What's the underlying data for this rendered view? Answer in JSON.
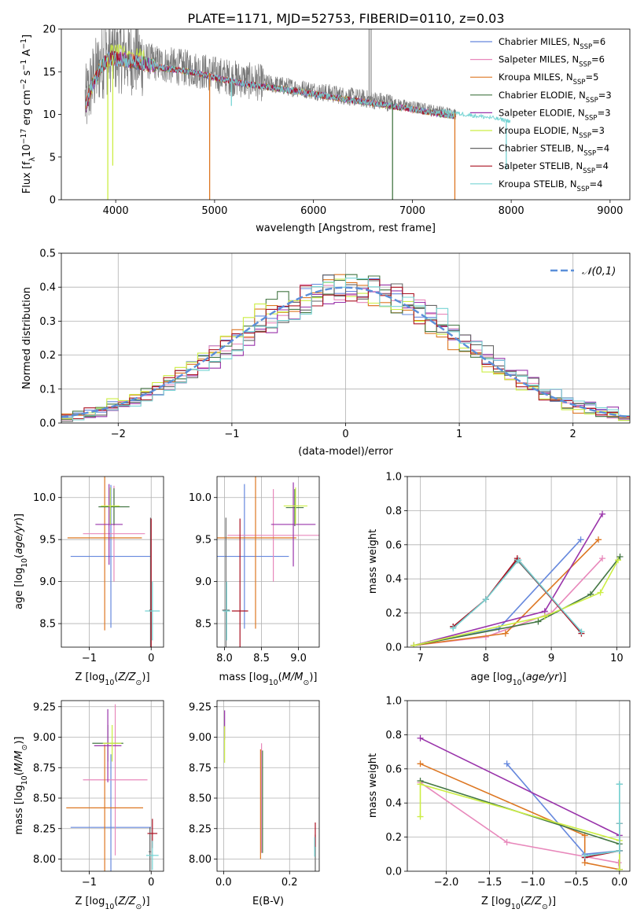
{
  "figure": {
    "title": "PLATE=1171, MJD=52753, FIBERID=0110, z=0.03"
  },
  "series_styles": [
    {
      "name": "Chabrier MILES",
      "nssp": "6",
      "color": "#6688dd"
    },
    {
      "name": "Salpeter MILES",
      "nssp": "6",
      "color": "#e888bb"
    },
    {
      "name": "Kroupa MILES",
      "nssp": "5",
      "color": "#dd7722"
    },
    {
      "name": "Chabrier ELODIE",
      "nssp": "3",
      "color": "#447744"
    },
    {
      "name": "Salpeter ELODIE",
      "nssp": "3",
      "color": "#9933aa"
    },
    {
      "name": "Kroupa ELODIE",
      "nssp": "3",
      "color": "#ccee44"
    },
    {
      "name": "Chabrier STELIB",
      "nssp": "4",
      "color": "#666666"
    },
    {
      "name": "Salpeter STELIB",
      "nssp": "4",
      "color": "#aa1122"
    },
    {
      "name": "Kroupa STELIB",
      "nssp": "4",
      "color": "#77d4d4"
    }
  ],
  "chart_data": [
    {
      "id": "spectrum",
      "type": "line",
      "xlabel": "wavelength [Angstrom, rest frame]",
      "ylabel": "Flux [f_λ10^-17 erg cm^-2 s^-1 A^-1]",
      "xlim": [
        3450,
        9200
      ],
      "ylim": [
        0,
        20
      ],
      "xticks": [
        4000,
        5000,
        6000,
        7000,
        8000,
        9000
      ],
      "yticks": [
        0,
        5,
        10,
        15,
        20
      ],
      "legend": "top-right",
      "continuum": [
        [
          3700,
          11.5
        ],
        [
          3750,
          13.5
        ],
        [
          3850,
          16.0
        ],
        [
          3950,
          17.0
        ],
        [
          4100,
          16.8
        ],
        [
          4300,
          16.3
        ],
        [
          4500,
          15.8
        ],
        [
          4800,
          15.3
        ],
        [
          5000,
          14.7
        ],
        [
          5300,
          14.0
        ],
        [
          5600,
          13.5
        ],
        [
          6000,
          12.8
        ],
        [
          6300,
          12.2
        ],
        [
          6600,
          11.7
        ],
        [
          7000,
          11.0
        ],
        [
          7400,
          10.2
        ],
        [
          7800,
          9.6
        ],
        [
          8000,
          9.2
        ]
      ],
      "absorption_spikes": [
        {
          "x": 3920,
          "y": 0.0
        },
        {
          "x": 3970,
          "y": 4.0
        },
        {
          "x": 4950,
          "y": 0.0
        },
        {
          "x": 5170,
          "y": 11.0
        },
        {
          "x": 6800,
          "y": 0.0
        },
        {
          "x": 7430,
          "y": 0.0
        },
        {
          "x": 7950,
          "y": 3.5
        }
      ],
      "emission_spikes": [
        {
          "x": 6563,
          "y": 20.0
        },
        {
          "x": 6583,
          "y": 20.0
        }
      ]
    },
    {
      "id": "residual_hist",
      "type": "bar",
      "xlabel": "(data-model)/error",
      "ylabel": "Normed distribution",
      "xlim": [
        -2.5,
        2.5
      ],
      "ylim": [
        0,
        0.5
      ],
      "xticks": [
        -2,
        -1,
        0,
        1,
        2
      ],
      "yticks": [
        0.0,
        0.1,
        0.2,
        0.3,
        0.4,
        0.5
      ],
      "bin_width": 0.1,
      "legend": "top-right",
      "gaussian_label": "𝒩(0,1)"
    },
    {
      "id": "z_vs_age",
      "type": "scatter",
      "xlabel": "Z [log10(Z/Z⊙)]",
      "ylabel": "age [log10(age/yr)]",
      "xlim": [
        -1.45,
        0.2
      ],
      "ylim": [
        8.22,
        10.25
      ],
      "xticks": [
        -1,
        0
      ],
      "yticks": [
        8.5,
        9.0,
        9.5,
        10.0
      ],
      "points": [
        {
          "x": -0.65,
          "y": 9.3,
          "xerr": 0.65,
          "yerr": 0.85
        },
        {
          "x": -0.6,
          "y": 9.57,
          "xerr": 0.5,
          "yerr": 0.57
        },
        {
          "x": -0.75,
          "y": 9.52,
          "xerr": 0.6,
          "yerr": 1.1
        },
        {
          "x": -0.6,
          "y": 9.89,
          "xerr": 0.25,
          "yerr": 0.22
        },
        {
          "x": -0.68,
          "y": 9.68,
          "xerr": 0.22,
          "yerr": 0.48
        },
        {
          "x": -0.66,
          "y": 9.9,
          "xerr": 0.15,
          "yerr": 0.22
        },
        {
          "x": -0.01,
          "y": 8.66,
          "xerr": 0.02,
          "yerr": 1.1
        },
        {
          "x": 0.0,
          "y": 8.65,
          "xerr": 0.03,
          "yerr": 1.1
        },
        {
          "x": 0.02,
          "y": 8.65,
          "xerr": 0.12,
          "yerr": 0.35
        }
      ]
    },
    {
      "id": "mass_vs_age",
      "type": "scatter",
      "xlabel": "mass [log10(M/M⊙)]",
      "ylabel": "",
      "xlim": [
        7.9,
        9.28
      ],
      "ylim": [
        8.22,
        10.25
      ],
      "xticks": [
        8.0,
        8.5,
        9.0
      ],
      "yticks": [
        8.5,
        9.0,
        9.5,
        10.0
      ],
      "points": [
        {
          "x": 8.27,
          "y": 9.3,
          "xerr": 0.6,
          "yerr": 0.86
        },
        {
          "x": 8.66,
          "y": 9.55,
          "xerr": 0.62,
          "yerr": 0.55
        },
        {
          "x": 8.42,
          "y": 9.52,
          "xerr": 0.55,
          "yerr": 1.08
        },
        {
          "x": 8.95,
          "y": 9.88,
          "xerr": 0.12,
          "yerr": 0.22
        },
        {
          "x": 8.93,
          "y": 9.68,
          "xerr": 0.3,
          "yerr": 0.5
        },
        {
          "x": 8.96,
          "y": 9.9,
          "xerr": 0.16,
          "yerr": 0.22
        },
        {
          "x": 8.02,
          "y": 8.66,
          "xerr": 0.05,
          "yerr": 1.1
        },
        {
          "x": 8.21,
          "y": 8.65,
          "xerr": 0.11,
          "yerr": 1.1
        },
        {
          "x": 8.03,
          "y": 8.65,
          "xerr": 0.05,
          "yerr": 0.35
        }
      ]
    },
    {
      "id": "age_vs_weight",
      "type": "line",
      "xlabel": "age [log10(age/yr)]",
      "ylabel": "mass weight",
      "xlim": [
        6.8,
        10.2
      ],
      "ylim": [
        0,
        1.0
      ],
      "xticks": [
        7,
        8,
        9,
        10
      ],
      "yticks": [
        0.0,
        0.2,
        0.4,
        0.6,
        0.8,
        1.0
      ],
      "series": [
        {
          "x": [
            6.9,
            8.2,
            9.45
          ],
          "y": [
            0.01,
            0.11,
            0.63
          ]
        },
        {
          "x": [
            6.9,
            8.0,
            9.0,
            9.78
          ],
          "y": [
            0.01,
            0.06,
            0.2,
            0.52
          ]
        },
        {
          "x": [
            6.9,
            8.3,
            9.72
          ],
          "y": [
            0.01,
            0.08,
            0.63
          ]
        },
        {
          "x": [
            6.9,
            8.8,
            9.6,
            10.05
          ],
          "y": [
            0.01,
            0.15,
            0.31,
            0.53
          ]
        },
        {
          "x": [
            6.9,
            8.9,
            9.78
          ],
          "y": [
            0.01,
            0.21,
            0.78
          ]
        },
        {
          "x": [
            6.9,
            8.9,
            9.75,
            10.02
          ],
          "y": [
            0.01,
            0.18,
            0.32,
            0.51
          ]
        },
        {
          "x": [
            7.5,
            8.0,
            8.48,
            9.46
          ],
          "y": [
            0.12,
            0.28,
            0.51,
            0.09
          ]
        },
        {
          "x": [
            7.5,
            8.0,
            8.48,
            9.46
          ],
          "y": [
            0.12,
            0.28,
            0.52,
            0.08
          ]
        },
        {
          "x": [
            7.5,
            8.0,
            8.5,
            9.46
          ],
          "y": [
            0.11,
            0.28,
            0.51,
            0.09
          ]
        }
      ]
    },
    {
      "id": "z_vs_mass",
      "type": "scatter",
      "xlabel": "Z [log10(Z/Z⊙)]",
      "ylabel": "mass [log10(M/M⊙)]",
      "xlim": [
        -1.45,
        0.2
      ],
      "ylim": [
        7.9,
        9.3
      ],
      "xticks": [
        -1,
        0
      ],
      "yticks": [
        8.0,
        8.25,
        8.5,
        8.75,
        9.0,
        9.25
      ],
      "points": [
        {
          "x": -0.65,
          "y": 8.26,
          "xerr": 0.65,
          "yerr": 0.6
        },
        {
          "x": -0.58,
          "y": 8.65,
          "xerr": 0.52,
          "yerr": 0.62
        },
        {
          "x": -0.75,
          "y": 8.42,
          "xerr": 0.62,
          "yerr": 0.52
        },
        {
          "x": -0.7,
          "y": 8.95,
          "xerr": 0.25,
          "yerr": 0.15
        },
        {
          "x": -0.7,
          "y": 8.93,
          "xerr": 0.22,
          "yerr": 0.3
        },
        {
          "x": -0.63,
          "y": 8.95,
          "xerr": 0.15,
          "yerr": 0.15
        },
        {
          "x": -0.02,
          "y": 8.06,
          "xerr": 0.02,
          "yerr": 0.2
        },
        {
          "x": 0.02,
          "y": 8.21,
          "xerr": 0.08,
          "yerr": 0.12
        },
        {
          "x": 0.02,
          "y": 8.03,
          "xerr": 0.1,
          "yerr": 0.12
        }
      ]
    },
    {
      "id": "ebv_vs_mass",
      "type": "scatter",
      "xlabel": "E(B-V)",
      "ylabel": "",
      "xlim": [
        -0.02,
        0.29
      ],
      "ylim": [
        7.9,
        9.3
      ],
      "xticks": [
        0.0,
        0.2
      ],
      "yticks": [
        8.0,
        8.25,
        8.5,
        8.75,
        9.0,
        9.25
      ],
      "points": [
        {
          "x": 0.003,
          "y": 9.1,
          "xerr": 0.0,
          "yerr": 0.12
        },
        {
          "x": 0.003,
          "y": 8.94,
          "xerr": 0.0,
          "yerr": 0.15
        },
        {
          "x": 0.112,
          "y": 8.45,
          "xerr": 0.0,
          "yerr": 0.45
        },
        {
          "x": 0.115,
          "y": 8.5,
          "xerr": 0.0,
          "yerr": 0.45
        },
        {
          "x": 0.118,
          "y": 8.47,
          "xerr": 0.0,
          "yerr": 0.42
        },
        {
          "x": 0.278,
          "y": 8.05,
          "xerr": 0.0,
          "yerr": 0.15
        },
        {
          "x": 0.278,
          "y": 8.2,
          "xerr": 0.0,
          "yerr": 0.1
        },
        {
          "x": 0.276,
          "y": 8.1,
          "xerr": 0.0,
          "yerr": 0.08
        }
      ]
    },
    {
      "id": "z_vs_weight",
      "type": "line",
      "xlabel": "Z [log10(Z/Z⊙)]",
      "ylabel": "mass weight",
      "xlim": [
        -2.45,
        0.12
      ],
      "ylim": [
        0,
        1.0
      ],
      "xticks": [
        -2.0,
        -1.5,
        -1.0,
        -0.5,
        0.0
      ],
      "yticks": [
        0.0,
        0.2,
        0.4,
        0.6,
        0.8,
        1.0
      ],
      "series": [
        {
          "x": [
            -1.3,
            -0.4,
            0.0,
            0.0
          ],
          "y": [
            0.63,
            0.1,
            0.12,
            0.01
          ]
        },
        {
          "x": [
            -2.3,
            -1.3,
            -0.01,
            0.0
          ],
          "y": [
            0.52,
            0.17,
            0.05,
            0.01
          ]
        },
        {
          "x": [
            -2.3,
            -0.4,
            -0.4,
            0.0
          ],
          "y": [
            0.63,
            0.21,
            0.05,
            0.01
          ]
        },
        {
          "x": [
            -2.3,
            0.0,
            0.0
          ],
          "y": [
            0.53,
            0.16,
            0.01
          ]
        },
        {
          "x": [
            -2.3,
            0.0,
            0.0
          ],
          "y": [
            0.78,
            0.21,
            0.01
          ]
        },
        {
          "x": [
            -2.3,
            -2.3,
            0.0,
            0.0
          ],
          "y": [
            0.32,
            0.51,
            0.18,
            0.01
          ]
        },
        {
          "x": [
            -0.4,
            0.0,
            0.0
          ],
          "y": [
            0.09,
            0.12,
            0.51
          ]
        },
        {
          "x": [
            -0.4,
            0.0,
            0.0
          ],
          "y": [
            0.08,
            0.12,
            0.28
          ]
        },
        {
          "x": [
            -0.4,
            0.0,
            0.0,
            0.0
          ],
          "y": [
            0.09,
            0.12,
            0.51,
            0.28
          ]
        }
      ]
    }
  ]
}
